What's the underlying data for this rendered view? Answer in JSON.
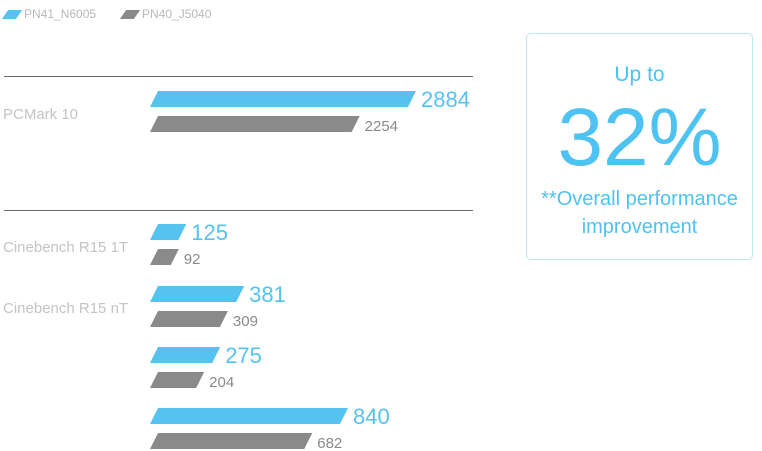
{
  "legend": [
    {
      "label": "PN41_N6005",
      "color": "#55c3f0"
    },
    {
      "label": "PN40_J5040",
      "color": "#8a8a8a"
    }
  ],
  "chart_data": {
    "type": "bar",
    "orientation": "horizontal",
    "categories": [
      "PCMark 10",
      "Cinebench R15 1T",
      "Cinebench R15 nT",
      "",
      ""
    ],
    "series": [
      {
        "name": "PN41_N6005",
        "color": "#55c3f0",
        "values": [
          2884,
          125,
          381,
          275,
          840
        ]
      },
      {
        "name": "PN40_J5040",
        "color": "#8a8a8a",
        "values": [
          2254,
          92,
          309,
          204,
          682
        ]
      }
    ],
    "grid": false,
    "legend_position": "top-left"
  },
  "callout": {
    "top_text": "Up to",
    "big_text": "32%",
    "note_line1": "**Overall performance",
    "note_line2": "improvement"
  }
}
